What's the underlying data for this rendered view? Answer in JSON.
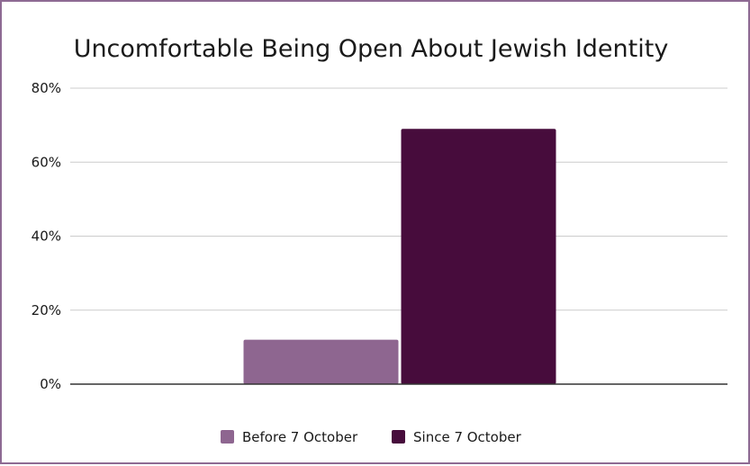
{
  "chart_data": {
    "type": "bar",
    "title": "Uncomfortable Being Open About Jewish Identity",
    "xlabel": "",
    "ylabel": "",
    "categories": [
      ""
    ],
    "series": [
      {
        "name": "Before 7 October",
        "values": [
          0.12
        ],
        "color": "#8e6690"
      },
      {
        "name": "Since 7 October",
        "values": [
          0.69
        ],
        "color": "#470c3c"
      }
    ],
    "ylim": [
      0,
      0.8
    ],
    "yticks": [
      0,
      0.2,
      0.4,
      0.6,
      0.8
    ],
    "ytick_labels": [
      "0%",
      "20%",
      "40%",
      "60%",
      "80%"
    ],
    "grid": true,
    "legend": "bottom"
  }
}
